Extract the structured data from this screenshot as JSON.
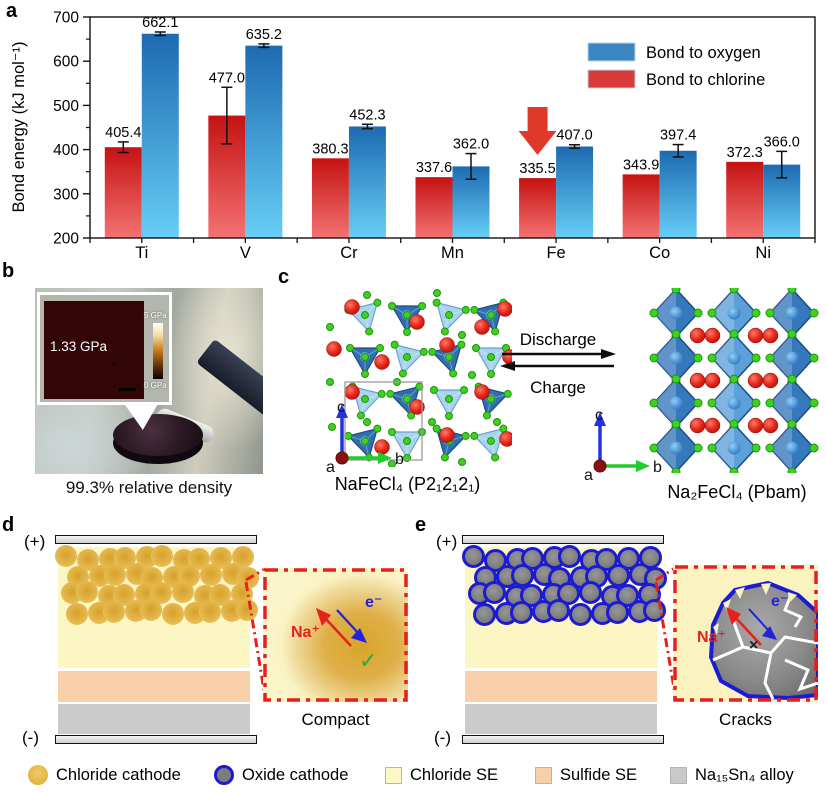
{
  "figure": {
    "panel_labels": {
      "a": "a",
      "b": "b",
      "c": "c",
      "d": "d",
      "e": "e"
    }
  },
  "chart_data": {
    "type": "bar",
    "title": "",
    "xlabel": "",
    "ylabel": "Bond energy (kJ mol⁻¹)",
    "ylim": [
      200,
      700
    ],
    "yticks": [
      200,
      300,
      400,
      500,
      600,
      700
    ],
    "categories": [
      "Ti",
      "V",
      "Cr",
      "Mn",
      "Fe",
      "Co",
      "Ni"
    ],
    "series": [
      {
        "name": "Bond to oxygen",
        "legend_color": "#3c87c1",
        "bar_gradient": [
          "#1d6ab1",
          "#67cef6"
        ],
        "values": [
          662.1,
          635.2,
          452.3,
          362.0,
          407.0,
          397.4,
          366.0
        ],
        "errors": [
          4,
          4,
          5,
          29,
          4,
          14,
          30
        ]
      },
      {
        "name": "Bond to chlorine",
        "legend_color": "#d93a3a",
        "bar_gradient": [
          "#c51212",
          "#f47272"
        ],
        "values": [
          405.4,
          477.0,
          380.3,
          337.6,
          335.5,
          343.9,
          372.3
        ],
        "errors": [
          12,
          64,
          0,
          0,
          0,
          0,
          0
        ]
      }
    ],
    "value_labels": true,
    "legend_position": "top-right",
    "grid": false,
    "annotation": {
      "type": "down-arrow",
      "target_category": "Fe",
      "target_series": "Bond to chlorine",
      "color": "#e0392b"
    }
  },
  "panel_b": {
    "modulus_value": "1.33 GPa",
    "scale_max": "5 GPa",
    "scale_min": "0 GPa",
    "caption": "99.3% relative density"
  },
  "panel_c": {
    "left_structure_label": "NaFeCl₄ (P2₁2₁2₁)",
    "right_structure_label": "Na₂FeCl₄ (Pbam)",
    "arrow_top_label": "Discharge",
    "arrow_bottom_label": "Charge",
    "axis_labels": {
      "a": "a",
      "b": "b",
      "c": "c"
    }
  },
  "panel_d": {
    "electrode_positive": "(+)",
    "electrode_negative": "(-)",
    "na_ion_label": "Na⁺",
    "electron_label": "e⁻",
    "status_mark": "✓",
    "caption": "Compact",
    "particle_color": "#dca42a"
  },
  "panel_e": {
    "electrode_positive": "(+)",
    "electrode_negative": "(-)",
    "na_ion_label": "Na⁺",
    "electron_label": "e⁻",
    "status_mark": "×",
    "caption": "Cracks",
    "particle_color": "#7b7b7b",
    "particle_outline": "#1b1bd4"
  },
  "bottom_legend": {
    "items": [
      {
        "label": "Chloride cathode",
        "swatch": "gold-circle",
        "color": "#dfa92d"
      },
      {
        "label": "Oxide cathode",
        "swatch": "outlined-circle",
        "color": "#7b7b7b",
        "outline": "#1b1bd4"
      },
      {
        "label": "Chloride SE",
        "swatch": "square",
        "color": "#fbf7c6"
      },
      {
        "label": "Sulfide SE",
        "swatch": "square",
        "color": "#f8cfa8"
      },
      {
        "label": "Na₁₅Sn₄ alloy",
        "swatch": "square",
        "color": "#c9c9c9"
      }
    ]
  },
  "colors": {
    "chloride_se": "#fcf6c3",
    "sulfide_se": "#f8cfa8",
    "alloy": "#cbcbcb",
    "inset_border_red": "#e8201c",
    "na_sphere": "#e52718",
    "cl_sphere": "#3fd11f",
    "fe_polyhedron_dark": "#2f6fae",
    "fe_polyhedron_light": "#a9d4ee"
  }
}
